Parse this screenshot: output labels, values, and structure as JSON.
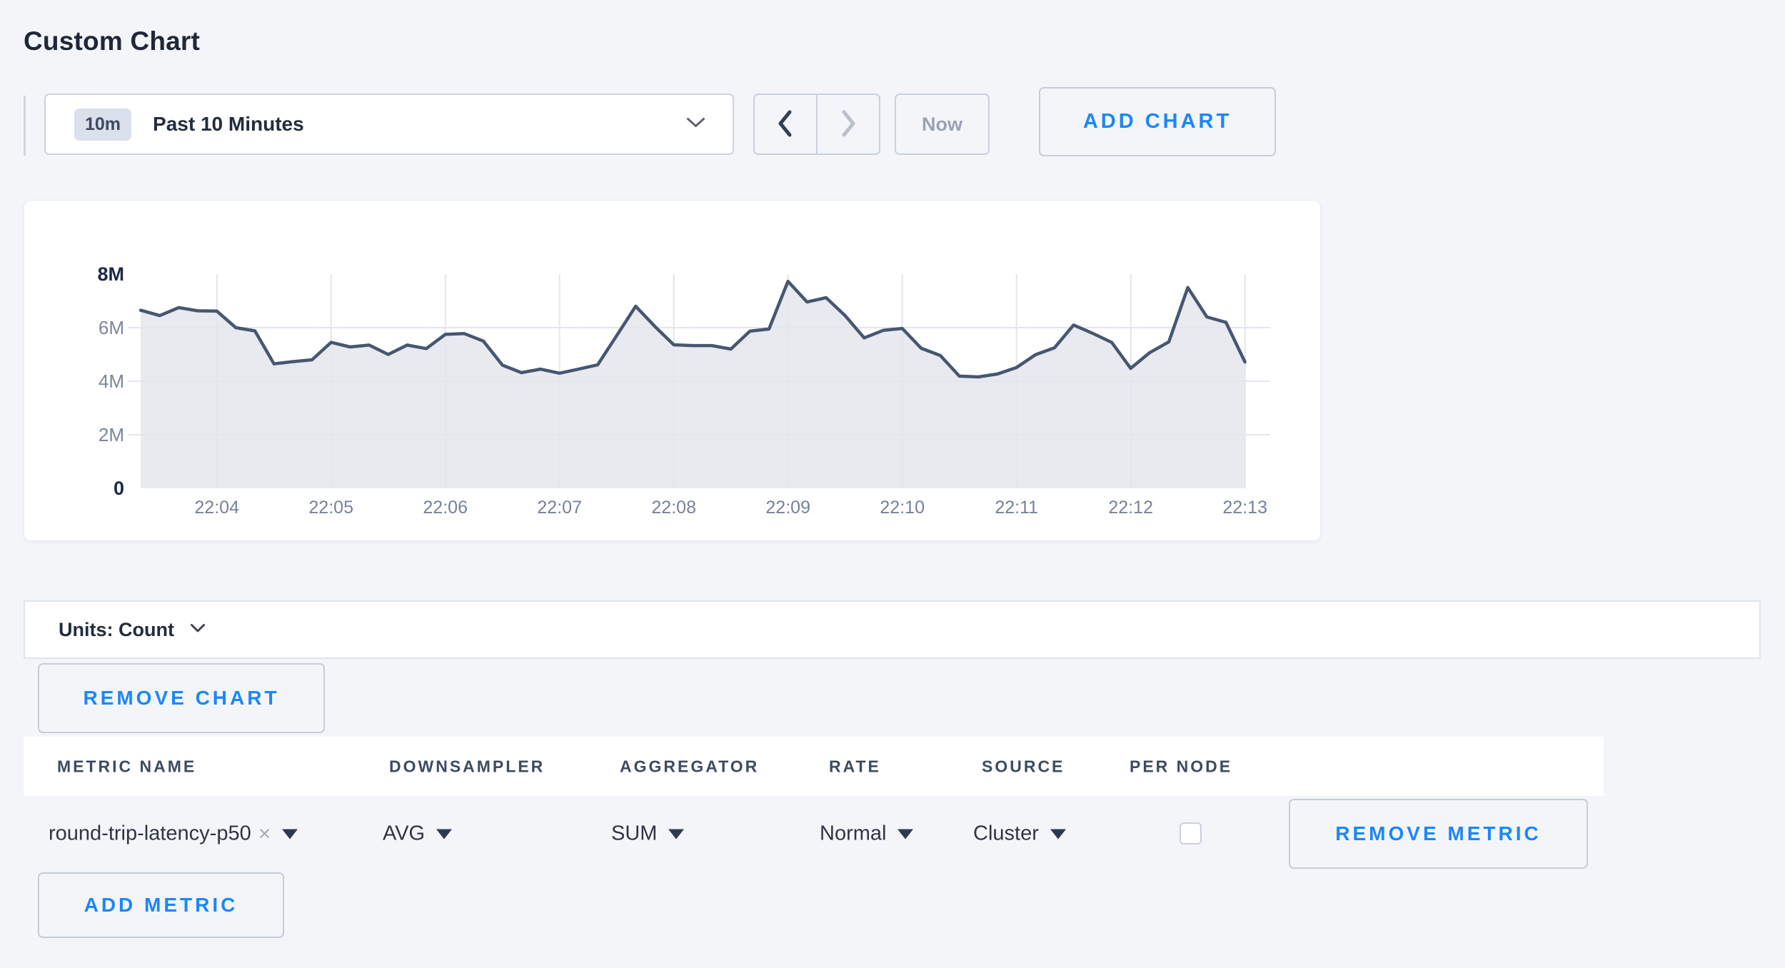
{
  "page": {
    "title": "Custom Chart"
  },
  "toolbar": {
    "time_window_badge": "10m",
    "time_window_label": "Past 10 Minutes",
    "now_label": "Now",
    "add_chart_label": "ADD CHART"
  },
  "units_bar": {
    "label": "Units: Count"
  },
  "chart_actions": {
    "remove_chart_label": "REMOVE CHART"
  },
  "icons": {
    "close": "×"
  },
  "colors": {
    "accent_blue": "#1b87fa",
    "line": "#475671",
    "area_fill": "#e8eaf0",
    "grid": "#e2e6ee",
    "axis_strong": "#1d2947",
    "axis_muted": "#7b8699",
    "x_tick": "#76829a"
  },
  "chart_data": {
    "type": "area",
    "title": "",
    "legend": "none",
    "grid": true,
    "ylabel": "Count",
    "ylim_millions": [
      0,
      8
    ],
    "y_ticks": [
      {
        "label": "8M",
        "value": 8,
        "emphasis": true
      },
      {
        "label": "6M",
        "value": 6,
        "emphasis": false
      },
      {
        "label": "4M",
        "value": 4,
        "emphasis": false
      },
      {
        "label": "2M",
        "value": 2,
        "emphasis": false
      },
      {
        "label": "0",
        "value": 0,
        "emphasis": true
      }
    ],
    "x_tick_labels": [
      "22:04",
      "22:05",
      "22:06",
      "22:07",
      "22:08",
      "22:09",
      "22:10",
      "22:11",
      "22:12",
      "22:13"
    ],
    "x": [
      "22:03:20",
      "22:03:30",
      "22:03:40",
      "22:03:50",
      "22:04:00",
      "22:04:10",
      "22:04:20",
      "22:04:30",
      "22:04:40",
      "22:04:50",
      "22:05:00",
      "22:05:10",
      "22:05:20",
      "22:05:30",
      "22:05:40",
      "22:05:50",
      "22:06:00",
      "22:06:10",
      "22:06:20",
      "22:06:30",
      "22:06:40",
      "22:06:50",
      "22:07:00",
      "22:07:10",
      "22:07:20",
      "22:07:30",
      "22:07:40",
      "22:07:50",
      "22:08:00",
      "22:08:10",
      "22:08:20",
      "22:08:30",
      "22:08:40",
      "22:08:50",
      "22:09:00",
      "22:09:10",
      "22:09:20",
      "22:09:30",
      "22:09:40",
      "22:09:50",
      "22:10:00",
      "22:10:10",
      "22:10:20",
      "22:10:30",
      "22:10:40",
      "22:10:50",
      "22:11:00",
      "22:11:10",
      "22:11:20",
      "22:11:30",
      "22:11:40",
      "22:11:50",
      "22:12:00",
      "22:12:10",
      "22:12:20",
      "22:12:30",
      "22:12:40",
      "22:12:50",
      "22:13:00"
    ],
    "series": [
      {
        "name": "round-trip-latency-p50",
        "unit": "Count",
        "values_millions": [
          6.65,
          6.45,
          6.75,
          6.63,
          6.62,
          6.0,
          5.88,
          4.65,
          4.73,
          4.8,
          5.45,
          5.28,
          5.35,
          5.0,
          5.35,
          5.22,
          5.75,
          5.78,
          5.5,
          4.6,
          4.32,
          4.45,
          4.3,
          4.45,
          4.61,
          5.7,
          6.8,
          6.05,
          5.36,
          5.33,
          5.33,
          5.2,
          5.87,
          5.95,
          7.73,
          6.96,
          7.12,
          6.45,
          5.62,
          5.9,
          5.97,
          5.23,
          4.96,
          4.19,
          4.16,
          4.27,
          4.51,
          4.99,
          5.25,
          6.1,
          5.79,
          5.45,
          4.48,
          5.07,
          5.47,
          7.5,
          6.4,
          6.2,
          4.72
        ]
      }
    ]
  },
  "metrics_table": {
    "headers": [
      "METRIC NAME",
      "DOWNSAMPLER",
      "AGGREGATOR",
      "RATE",
      "SOURCE",
      "PER NODE"
    ],
    "rows": [
      {
        "metric_name": "round-trip-latency-p50",
        "downsampler": "AVG",
        "aggregator": "SUM",
        "rate": "Normal",
        "source": "Cluster",
        "per_node_checked": false,
        "remove_label": "REMOVE METRIC"
      }
    ],
    "add_metric_label": "ADD METRIC"
  }
}
